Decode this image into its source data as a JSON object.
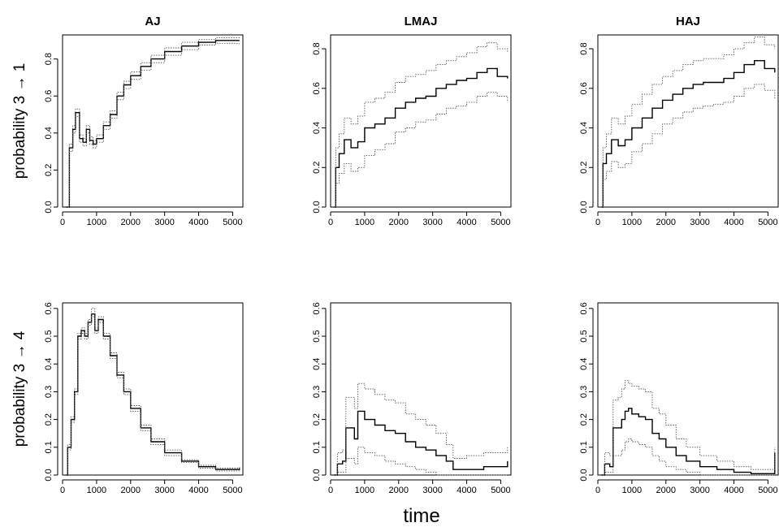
{
  "figure": {
    "xlabel": "time"
  },
  "chart_data": [
    {
      "type": "line",
      "row": 0,
      "col": 0,
      "title": "AJ",
      "ylabel": "probability 3 → 1",
      "xlim": [
        0,
        5300
      ],
      "ylim": [
        0,
        0.93
      ],
      "xticks": [
        0,
        1000,
        2000,
        3000,
        4000,
        5000
      ],
      "yticks": [
        0.0,
        0.2,
        0.4,
        0.6,
        0.8
      ],
      "x": [
        80,
        200,
        300,
        380,
        500,
        600,
        700,
        800,
        900,
        1000,
        1200,
        1400,
        1600,
        1800,
        2000,
        2300,
        2600,
        3000,
        3500,
        4000,
        4500,
        5000,
        5200
      ],
      "series": [
        {
          "name": "",
          "role": "estimate",
          "values": [
            0.0,
            0.32,
            0.42,
            0.51,
            0.37,
            0.35,
            0.42,
            0.36,
            0.34,
            0.37,
            0.44,
            0.5,
            0.6,
            0.66,
            0.71,
            0.76,
            0.8,
            0.84,
            0.87,
            0.89,
            0.9,
            0.9,
            0.9
          ]
        },
        {
          "name": "",
          "role": "lower",
          "values": [
            0.0,
            0.3,
            0.4,
            0.49,
            0.35,
            0.33,
            0.4,
            0.34,
            0.32,
            0.35,
            0.42,
            0.48,
            0.58,
            0.64,
            0.69,
            0.74,
            0.78,
            0.82,
            0.85,
            0.875,
            0.885,
            0.885,
            0.885
          ]
        },
        {
          "name": "",
          "role": "upper",
          "values": [
            0.0,
            0.34,
            0.44,
            0.53,
            0.39,
            0.37,
            0.44,
            0.38,
            0.36,
            0.39,
            0.46,
            0.52,
            0.62,
            0.68,
            0.73,
            0.78,
            0.82,
            0.86,
            0.89,
            0.905,
            0.915,
            0.915,
            0.91
          ]
        }
      ]
    },
    {
      "type": "line",
      "row": 0,
      "col": 1,
      "title": "LMAJ",
      "ylabel": "",
      "xlim": [
        0,
        5300
      ],
      "ylim": [
        0,
        0.87
      ],
      "xticks": [
        0,
        1000,
        2000,
        3000,
        4000,
        5000
      ],
      "yticks": [
        0.0,
        0.2,
        0.4,
        0.6,
        0.8
      ],
      "x": [
        80,
        150,
        250,
        400,
        600,
        800,
        1000,
        1300,
        1600,
        1900,
        2200,
        2500,
        2800,
        3100,
        3400,
        3700,
        4000,
        4300,
        4600,
        4900,
        5200
      ],
      "series": [
        {
          "name": "",
          "role": "estimate",
          "values": [
            0.0,
            0.2,
            0.27,
            0.34,
            0.3,
            0.33,
            0.4,
            0.42,
            0.45,
            0.5,
            0.53,
            0.55,
            0.56,
            0.6,
            0.62,
            0.64,
            0.65,
            0.68,
            0.7,
            0.66,
            0.65
          ]
        },
        {
          "name": "",
          "role": "lower",
          "values": [
            0.0,
            0.12,
            0.17,
            0.22,
            0.18,
            0.2,
            0.26,
            0.29,
            0.32,
            0.38,
            0.4,
            0.43,
            0.44,
            0.47,
            0.5,
            0.51,
            0.53,
            0.56,
            0.58,
            0.56,
            0.53
          ]
        },
        {
          "name": "",
          "role": "upper",
          "values": [
            0.0,
            0.3,
            0.37,
            0.45,
            0.42,
            0.46,
            0.53,
            0.55,
            0.58,
            0.63,
            0.66,
            0.67,
            0.69,
            0.72,
            0.74,
            0.76,
            0.78,
            0.81,
            0.83,
            0.8,
            0.78
          ]
        }
      ]
    },
    {
      "type": "line",
      "row": 0,
      "col": 2,
      "title": "HAJ",
      "ylabel": "",
      "xlim": [
        0,
        5300
      ],
      "ylim": [
        0,
        0.87
      ],
      "xticks": [
        0,
        1000,
        2000,
        3000,
        4000,
        5000
      ],
      "yticks": [
        0.0,
        0.2,
        0.4,
        0.6,
        0.8
      ],
      "x": [
        80,
        150,
        250,
        400,
        600,
        800,
        1000,
        1300,
        1600,
        1900,
        2200,
        2500,
        2800,
        3100,
        3400,
        3700,
        4000,
        4300,
        4600,
        4900,
        5200
      ],
      "series": [
        {
          "name": "",
          "role": "estimate",
          "values": [
            0.0,
            0.22,
            0.27,
            0.34,
            0.31,
            0.34,
            0.4,
            0.45,
            0.5,
            0.54,
            0.57,
            0.6,
            0.62,
            0.63,
            0.63,
            0.65,
            0.68,
            0.72,
            0.74,
            0.7,
            0.68
          ]
        },
        {
          "name": "",
          "role": "lower",
          "values": [
            0.0,
            0.14,
            0.18,
            0.23,
            0.2,
            0.22,
            0.28,
            0.32,
            0.37,
            0.42,
            0.45,
            0.48,
            0.5,
            0.51,
            0.52,
            0.53,
            0.56,
            0.6,
            0.62,
            0.59,
            0.55
          ]
        },
        {
          "name": "",
          "role": "upper",
          "values": [
            0.0,
            0.3,
            0.37,
            0.45,
            0.42,
            0.46,
            0.52,
            0.57,
            0.62,
            0.66,
            0.69,
            0.72,
            0.74,
            0.75,
            0.75,
            0.77,
            0.8,
            0.83,
            0.86,
            0.82,
            0.8
          ]
        }
      ]
    },
    {
      "type": "line",
      "row": 1,
      "col": 0,
      "title": "",
      "ylabel": "probability 3 → 4",
      "xlim": [
        0,
        5300
      ],
      "ylim": [
        0,
        0.62
      ],
      "xticks": [
        0,
        1000,
        2000,
        3000,
        4000,
        5000
      ],
      "yticks": [
        0.0,
        0.1,
        0.2,
        0.3,
        0.4,
        0.5,
        0.6
      ],
      "x": [
        80,
        150,
        250,
        350,
        450,
        550,
        650,
        750,
        850,
        950,
        1050,
        1200,
        1400,
        1600,
        1800,
        2000,
        2300,
        2600,
        3000,
        3500,
        4000,
        4500,
        5000,
        5200
      ],
      "series": [
        {
          "name": "",
          "role": "estimate",
          "values": [
            0.0,
            0.1,
            0.2,
            0.3,
            0.5,
            0.52,
            0.5,
            0.55,
            0.58,
            0.52,
            0.56,
            0.5,
            0.43,
            0.36,
            0.3,
            0.24,
            0.17,
            0.12,
            0.08,
            0.05,
            0.03,
            0.02,
            0.02,
            0.025
          ]
        },
        {
          "name": "",
          "role": "lower",
          "values": [
            0.0,
            0.09,
            0.19,
            0.29,
            0.49,
            0.51,
            0.49,
            0.54,
            0.57,
            0.51,
            0.55,
            0.49,
            0.42,
            0.35,
            0.29,
            0.23,
            0.16,
            0.11,
            0.07,
            0.045,
            0.025,
            0.015,
            0.015,
            0.02
          ]
        },
        {
          "name": "",
          "role": "upper",
          "values": [
            0.0,
            0.11,
            0.21,
            0.31,
            0.51,
            0.53,
            0.51,
            0.56,
            0.6,
            0.53,
            0.57,
            0.51,
            0.44,
            0.37,
            0.31,
            0.25,
            0.18,
            0.13,
            0.09,
            0.055,
            0.035,
            0.025,
            0.025,
            0.03
          ]
        }
      ]
    },
    {
      "type": "line",
      "row": 1,
      "col": 1,
      "title": "",
      "ylabel": "",
      "xlim": [
        0,
        5300
      ],
      "ylim": [
        0,
        0.62
      ],
      "xticks": [
        0,
        1000,
        2000,
        3000,
        4000,
        5000
      ],
      "yticks": [
        0.0,
        0.1,
        0.2,
        0.3,
        0.4,
        0.5,
        0.6
      ],
      "x": [
        80,
        200,
        350,
        450,
        600,
        700,
        800,
        1000,
        1300,
        1600,
        1900,
        2200,
        2500,
        2800,
        3100,
        3400,
        3600,
        4000,
        4500,
        5000,
        5200
      ],
      "series": [
        {
          "name": "",
          "role": "estimate",
          "values": [
            0.0,
            0.04,
            0.05,
            0.17,
            0.17,
            0.13,
            0.23,
            0.2,
            0.18,
            0.16,
            0.15,
            0.12,
            0.1,
            0.09,
            0.07,
            0.05,
            0.02,
            0.02,
            0.03,
            0.03,
            0.05
          ]
        },
        {
          "name": "",
          "role": "lower",
          "values": [
            0.0,
            0.01,
            0.01,
            0.06,
            0.06,
            0.04,
            0.1,
            0.08,
            0.07,
            0.05,
            0.04,
            0.03,
            0.02,
            0.01,
            0.0,
            0.0,
            0.0,
            0.0,
            0.0,
            0.0,
            0.0
          ]
        },
        {
          "name": "",
          "role": "upper",
          "values": [
            0.0,
            0.08,
            0.09,
            0.28,
            0.28,
            0.24,
            0.33,
            0.31,
            0.29,
            0.27,
            0.26,
            0.22,
            0.2,
            0.18,
            0.15,
            0.11,
            0.06,
            0.07,
            0.08,
            0.08,
            0.1
          ]
        }
      ]
    },
    {
      "type": "line",
      "row": 1,
      "col": 2,
      "title": "",
      "ylabel": "",
      "xlim": [
        0,
        5300
      ],
      "ylim": [
        0,
        0.62
      ],
      "xticks": [
        0,
        1000,
        2000,
        3000,
        4000,
        5000
      ],
      "yticks": [
        0.0,
        0.1,
        0.2,
        0.3,
        0.4,
        0.5,
        0.6
      ],
      "x": [
        80,
        200,
        350,
        450,
        600,
        700,
        800,
        900,
        1000,
        1200,
        1400,
        1600,
        1800,
        2000,
        2300,
        2600,
        3000,
        3500,
        4000,
        4500,
        5000,
        5200
      ],
      "series": [
        {
          "name": "",
          "role": "estimate",
          "values": [
            0.0,
            0.04,
            0.03,
            0.17,
            0.17,
            0.2,
            0.23,
            0.24,
            0.22,
            0.21,
            0.2,
            0.15,
            0.13,
            0.1,
            0.07,
            0.05,
            0.03,
            0.02,
            0.01,
            0.005,
            0.005,
            0.08
          ]
        },
        {
          "name": "",
          "role": "lower",
          "values": [
            0.0,
            0.01,
            0.01,
            0.07,
            0.07,
            0.09,
            0.12,
            0.13,
            0.12,
            0.11,
            0.1,
            0.07,
            0.05,
            0.03,
            0.02,
            0.01,
            0.0,
            0.0,
            0.0,
            0.0,
            0.0,
            0.0
          ]
        },
        {
          "name": "",
          "role": "upper",
          "values": [
            0.0,
            0.08,
            0.07,
            0.27,
            0.28,
            0.31,
            0.34,
            0.33,
            0.32,
            0.31,
            0.3,
            0.24,
            0.22,
            0.18,
            0.13,
            0.1,
            0.07,
            0.05,
            0.03,
            0.02,
            0.02,
            0.1
          ]
        }
      ]
    }
  ]
}
